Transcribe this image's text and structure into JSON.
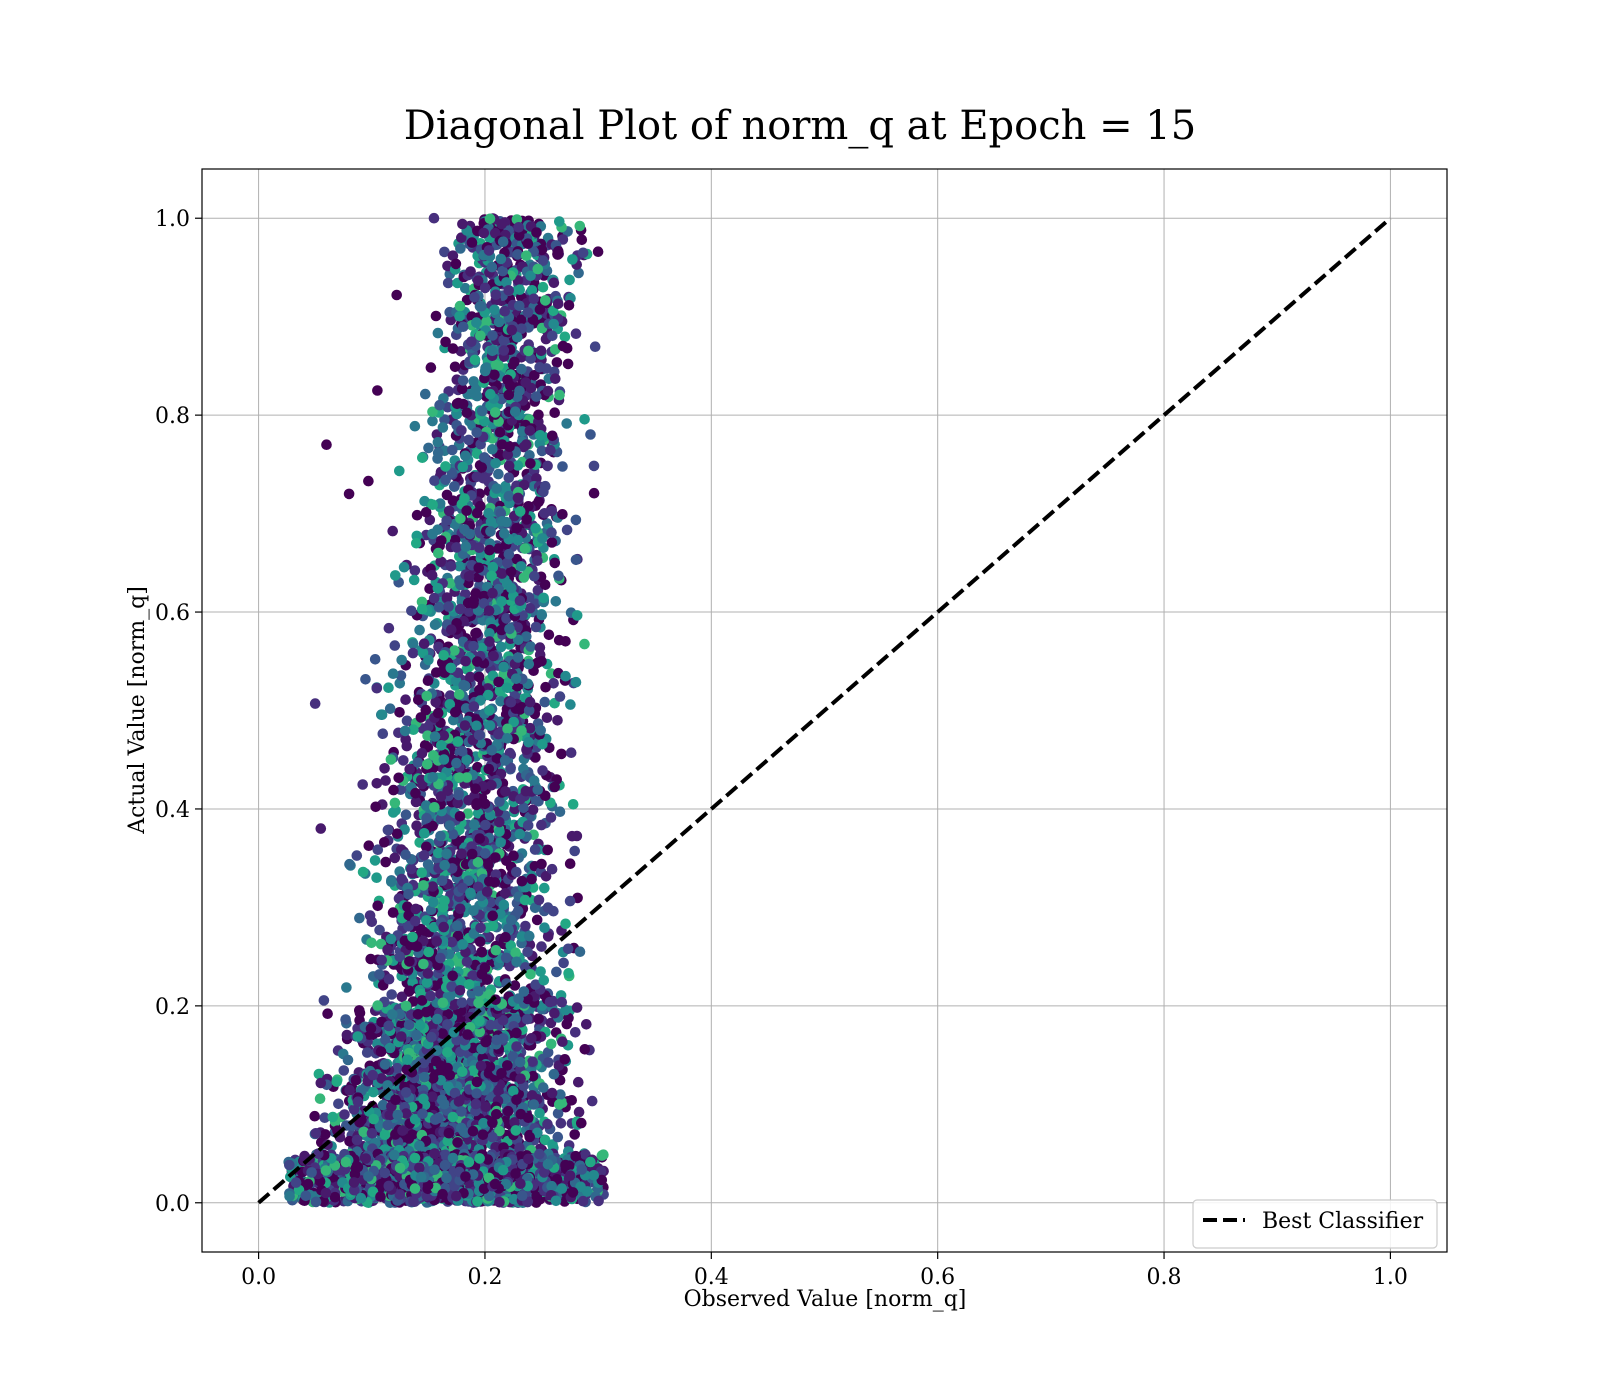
{
  "chart_data": {
    "type": "scatter",
    "title": "Diagonal Plot of norm_q at Epoch = 15",
    "xlabel": "Observed Value [norm_q]",
    "ylabel": "Actual Value [norm_q]",
    "xlim": [
      -0.05,
      1.05
    ],
    "ylim": [
      -0.05,
      1.05
    ],
    "x_ticks": [
      0.0,
      0.2,
      0.4,
      0.6,
      0.8,
      1.0
    ],
    "y_ticks": [
      0.0,
      0.2,
      0.4,
      0.6,
      0.8,
      1.0
    ],
    "x_tick_labels": [
      "0.0",
      "0.2",
      "0.4",
      "0.6",
      "0.8",
      "1.0"
    ],
    "y_tick_labels": [
      "0.0",
      "0.2",
      "0.4",
      "0.6",
      "0.8",
      "1.0"
    ],
    "grid": true,
    "legend": {
      "position": "lower-right",
      "entries": [
        "Best Classifier"
      ]
    },
    "colormap": "viridis",
    "point_cloud": {
      "x_range": [
        0.02,
        0.31
      ],
      "y_range": [
        0.0,
        1.0
      ],
      "description_of_density_bands": [
        {
          "y": [
            0.0,
            0.2
          ],
          "x": [
            0.02,
            0.31
          ],
          "weight": 0.45
        },
        {
          "y": [
            0.2,
            0.4
          ],
          "x": [
            0.05,
            0.3
          ],
          "weight": 0.18
        },
        {
          "y": [
            0.4,
            0.6
          ],
          "x": [
            0.08,
            0.3
          ],
          "weight": 0.14
        },
        {
          "y": [
            0.6,
            0.8
          ],
          "x": [
            0.11,
            0.3
          ],
          "weight": 0.12
        },
        {
          "y": [
            0.8,
            1.0
          ],
          "x": [
            0.14,
            0.3
          ],
          "weight": 0.11
        }
      ],
      "outliers": [
        [
          0.155,
          1.0
        ],
        [
          0.199,
          0.985
        ],
        [
          0.06,
          0.77
        ],
        [
          0.105,
          0.825
        ],
        [
          0.122,
          0.922
        ],
        [
          0.055,
          0.38
        ],
        [
          0.3,
          0.966
        ],
        [
          0.05,
          0.507
        ],
        [
          0.08,
          0.72
        ],
        [
          0.097,
          0.733
        ]
      ]
    },
    "series": [
      {
        "name": "Best Classifier",
        "type": "line",
        "style": "dashed",
        "color": "#000000",
        "x": [
          0.0,
          1.0
        ],
        "y": [
          0.0,
          1.0
        ]
      }
    ]
  }
}
